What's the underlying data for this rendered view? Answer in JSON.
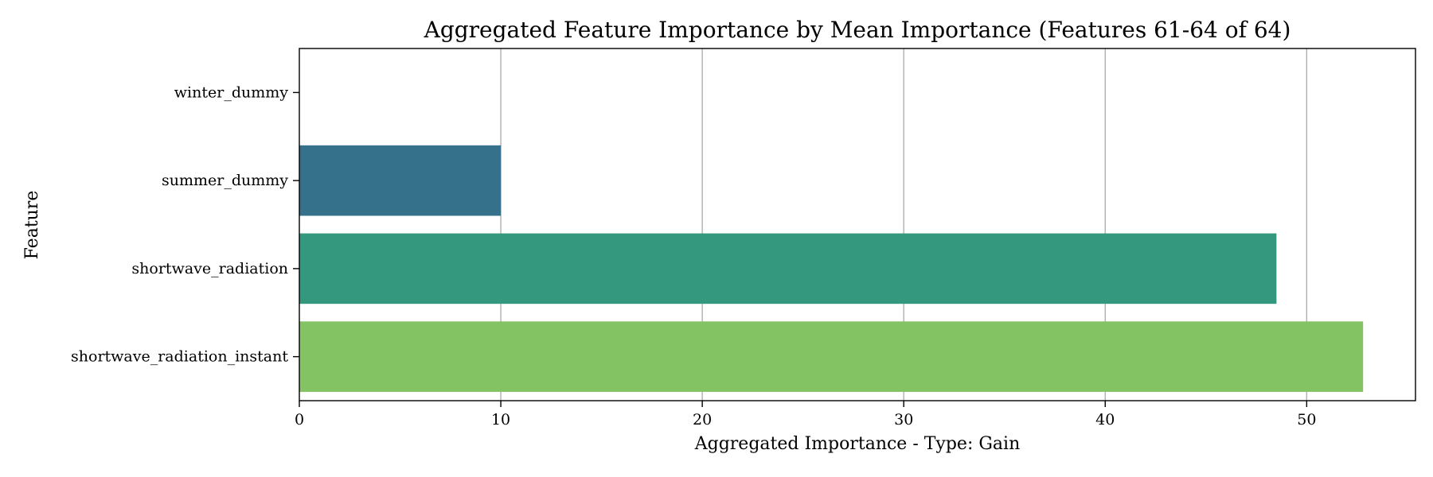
{
  "chart_data": {
    "type": "bar",
    "orientation": "horizontal",
    "title": "Aggregated Feature Importance by Mean Importance (Features 61-64 of 64)",
    "xlabel": "Aggregated Importance - Type: Gain",
    "ylabel": "Feature",
    "categories": [
      "winter_dummy",
      "summer_dummy",
      "shortwave_radiation",
      "shortwave_radiation_instant"
    ],
    "values": [
      0.0,
      10.0,
      48.5,
      52.8
    ],
    "colors": [
      "#440154",
      "#35718a",
      "#33987d",
      "#83c363"
    ],
    "xlim": [
      0,
      55.4
    ],
    "xticks": [
      0,
      10,
      20,
      30,
      40,
      50
    ],
    "grid": "x",
    "legend": "none"
  }
}
